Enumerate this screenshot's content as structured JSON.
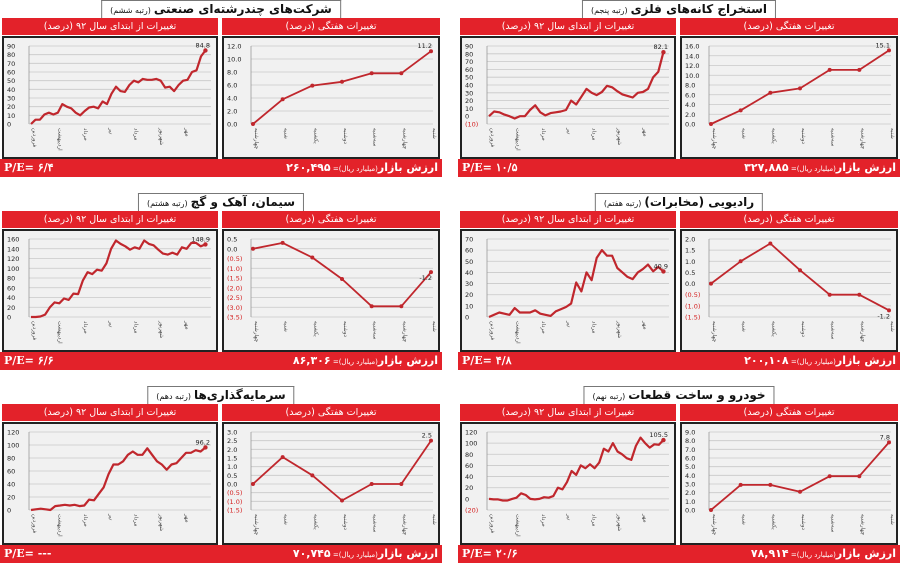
{
  "labels": {
    "yearly_header": "تغییرات از ابتدای سال ۹۲ (درصد)",
    "weekly_header": "تغییرات هفتگی (درصد)",
    "market_label": "ارزش بازار",
    "market_unit": "(میلیارد ریال)= ",
    "pe_label": "P/E= "
  },
  "colors": {
    "accent": "#e3222a",
    "line": "#c0272d",
    "negative_tick": "#d42020"
  },
  "chart_data": [
    {
      "type": "line",
      "title": "استخراج کانه‌های فلزی",
      "rank": "(رتبه پنجم)",
      "market_value": "۳۲۷,۸۸۵",
      "pe": "۱۰/۵",
      "yearly": {
        "ylim": [
          -10,
          90
        ],
        "yticks": [
          "(10)",
          "0",
          "10",
          "20",
          "30",
          "40",
          "50",
          "60",
          "70",
          "80",
          "90"
        ],
        "categories": [
          "فروردین",
          "اردیبهشت",
          "خرداد",
          "تیر",
          "مرداد",
          "شهریور",
          "مهر"
        ],
        "values": [
          0,
          6,
          5,
          2,
          0,
          -3,
          0,
          0,
          8,
          14,
          5,
          1,
          4,
          5,
          6,
          8,
          20,
          15,
          25,
          35,
          30,
          27,
          31,
          39,
          37,
          32,
          28,
          26,
          24,
          30,
          31,
          35,
          50,
          57,
          82.1
        ],
        "last_label": "82.1"
      },
      "weekly": {
        "ylim": [
          0,
          16
        ],
        "yticks": [
          "0.0",
          "2.0",
          "4.0",
          "6.0",
          "8.0",
          "10.0",
          "12.0",
          "14.0",
          "16.0"
        ],
        "categories": [
          "چهارشنبه",
          "شنبه",
          "یکشنبه",
          "دوشنبه",
          "سه‌شنبه",
          "چهارشنبه",
          "شنبه"
        ],
        "values": [
          0,
          2.8,
          6.4,
          7.3,
          11.1,
          11.1,
          15.1
        ],
        "last_label": "15.1"
      }
    },
    {
      "type": "line",
      "title": "شرکت‌های چندرشته‌ای صنعتی",
      "rank": "(رتبه ششم)",
      "market_value": "۲۶۰,۴۹۵",
      "pe": "۶/۴",
      "yearly": {
        "ylim": [
          0,
          90
        ],
        "yticks": [
          "0",
          "10",
          "20",
          "30",
          "40",
          "50",
          "60",
          "70",
          "80",
          "90"
        ],
        "categories": [
          "فروردین",
          "اردیبهشت",
          "خرداد",
          "تیر",
          "مرداد",
          "شهریور",
          "مهر"
        ],
        "values": [
          0,
          5,
          5,
          11,
          13,
          11,
          13,
          23,
          20,
          18,
          13,
          10,
          15,
          19,
          20,
          18,
          26,
          23,
          35,
          43,
          38,
          37,
          45,
          50,
          48,
          52,
          51,
          51,
          52,
          50,
          42,
          43,
          38,
          45,
          50,
          51,
          60,
          62,
          78,
          84.8
        ],
        "last_label": "84.8"
      },
      "weekly": {
        "ylim": [
          0,
          12
        ],
        "yticks": [
          "0.0",
          "2.0",
          "4.0",
          "6.0",
          "8.0",
          "10.0",
          "12.0"
        ],
        "categories": [
          "چهارشنبه",
          "شنبه",
          "یکشنبه",
          "دوشنبه",
          "سه‌شنبه",
          "چهارشنبه",
          "شنبه"
        ],
        "values": [
          0,
          3.8,
          5.9,
          6.5,
          7.8,
          7.8,
          11.2
        ],
        "last_label": "11.2"
      }
    },
    {
      "type": "line",
      "title": "رادیویی (مخابرات)",
      "rank": "(رتبه هفتم)",
      "market_value": "۲۰۰,۱۰۸",
      "pe": "۴/۸",
      "yearly": {
        "ylim": [
          0,
          70
        ],
        "yticks": [
          "0",
          "10",
          "20",
          "30",
          "40",
          "50",
          "60",
          "70"
        ],
        "categories": [
          "فروردین",
          "اردیبهشت",
          "خرداد",
          "تیر",
          "مرداد",
          "شهریور",
          "مهر"
        ],
        "values": [
          0,
          2,
          4,
          3,
          2,
          8,
          4,
          4,
          4,
          6,
          3,
          2,
          1,
          5,
          7,
          9,
          12,
          31,
          23,
          40,
          33,
          53,
          60,
          55,
          55,
          44,
          40,
          36,
          34,
          40,
          43,
          47,
          41,
          45,
          40.9
        ],
        "last_label": "40.9"
      },
      "weekly": {
        "ylim": [
          -1.5,
          2.0
        ],
        "yticks": [
          "(1.5)",
          "(1.0)",
          "(0.5)",
          "0.0",
          "0.5",
          "1.0",
          "1.5",
          "2.0"
        ],
        "categories": [
          "چهارشنبه",
          "شنبه",
          "یکشنبه",
          "دوشنبه",
          "سه‌شنبه",
          "چهارشنبه",
          "شنبه"
        ],
        "values": [
          0,
          1.0,
          1.8,
          0.6,
          -0.5,
          -0.5,
          -1.2
        ],
        "last_label": "-1.2"
      }
    },
    {
      "type": "line",
      "title": "سیمان، آهک و گچ",
      "rank": "(رتبه هشتم)",
      "market_value": "۸۶,۳۰۶",
      "pe": "۶/۶",
      "yearly": {
        "ylim": [
          0,
          160
        ],
        "yticks": [
          "0",
          "20",
          "40",
          "60",
          "80",
          "100",
          "120",
          "140",
          "160"
        ],
        "categories": [
          "فروردین",
          "اردیبهشت",
          "خرداد",
          "تیر",
          "مرداد",
          "شهریور",
          "مهر"
        ],
        "values": [
          0,
          0,
          1,
          5,
          20,
          30,
          28,
          38,
          35,
          48,
          47,
          75,
          92,
          88,
          97,
          95,
          110,
          140,
          157,
          150,
          145,
          138,
          143,
          140,
          157,
          150,
          147,
          138,
          130,
          128,
          132,
          128,
          143,
          140,
          152,
          152,
          145,
          148.9
        ],
        "last_label": "148.9"
      },
      "weekly": {
        "ylim": [
          -3.5,
          0.5
        ],
        "yticks": [
          "(3.5)",
          "(3.0)",
          "(2.5)",
          "(2.0)",
          "(1.5)",
          "(1.0)",
          "(0.5)",
          "0.0",
          "0.5"
        ],
        "categories": [
          "چهارشنبه",
          "شنبه",
          "یکشنبه",
          "دوشنبه",
          "سه‌شنبه",
          "چهارشنبه",
          "شنبه"
        ],
        "values": [
          0,
          0.3,
          -0.45,
          -1.55,
          -2.95,
          -2.95,
          -1.2
        ],
        "last_label": "-1.2"
      }
    },
    {
      "type": "line",
      "title": "خودرو و ساخت قطعات",
      "rank": "(رتبه نهم)",
      "market_value": "۷۸,۹۱۴",
      "pe": "۲۰/۶",
      "yearly": {
        "ylim": [
          -20,
          120
        ],
        "yticks": [
          "(20)",
          "0",
          "20",
          "40",
          "60",
          "80",
          "100",
          "120"
        ],
        "categories": [
          "فروردین",
          "اردیبهشت",
          "خرداد",
          "تیر",
          "مرداد",
          "شهریور",
          "مهر"
        ],
        "values": [
          0,
          -1,
          -1,
          -3,
          -3,
          0,
          2,
          10,
          7,
          0,
          -1,
          0,
          3,
          2,
          5,
          20,
          17,
          30,
          50,
          43,
          60,
          55,
          62,
          55,
          65,
          90,
          85,
          100,
          85,
          80,
          73,
          70,
          95,
          110,
          100,
          92,
          98,
          97,
          105.5
        ],
        "last_label": "105.5"
      },
      "weekly": {
        "ylim": [
          0,
          9
        ],
        "yticks": [
          "0.0",
          "1.0",
          "2.0",
          "3.0",
          "4.0",
          "5.0",
          "6.0",
          "7.0",
          "8.0",
          "9.0"
        ],
        "categories": [
          "چهارشنبه",
          "شنبه",
          "یکشنبه",
          "دوشنبه",
          "سه‌شنبه",
          "چهارشنبه",
          "شنبه"
        ],
        "values": [
          0,
          2.9,
          2.9,
          2.1,
          3.9,
          3.9,
          7.8
        ],
        "last_label": "7.8"
      }
    },
    {
      "type": "line",
      "title": "سرمایه‌گذاری‌ها",
      "rank": "(رتبه دهم)",
      "market_value": "۷۰,۷۴۵",
      "pe": "---",
      "yearly": {
        "ylim": [
          0,
          120
        ],
        "yticks": [
          "0",
          "20",
          "40",
          "60",
          "80",
          "100",
          "120"
        ],
        "categories": [
          "فروردین",
          "اردیبهشت",
          "خرداد",
          "تیر",
          "مرداد",
          "شهریور",
          "مهر"
        ],
        "values": [
          0,
          1,
          2,
          1,
          0,
          6,
          7,
          8,
          7,
          8,
          6,
          7,
          16,
          15,
          25,
          35,
          55,
          70,
          70,
          75,
          85,
          90,
          85,
          85,
          95,
          85,
          75,
          70,
          62,
          70,
          72,
          80,
          88,
          88,
          92,
          90,
          96.2
        ],
        "last_label": "96.2"
      },
      "weekly": {
        "ylim": [
          -1.5,
          3.0
        ],
        "yticks": [
          "(1.5)",
          "(1.0)",
          "(0.5)",
          "0.0",
          "0.5",
          "1.0",
          "1.5",
          "2.0",
          "2.5",
          "3.0"
        ],
        "categories": [
          "چهارشنبه",
          "شنبه",
          "یکشنبه",
          "دوشنبه",
          "سه‌شنبه",
          "چهارشنبه",
          "شنبه"
        ],
        "values": [
          0,
          1.55,
          0.5,
          -0.95,
          0,
          0,
          2.5
        ],
        "last_label": "2.5"
      }
    }
  ]
}
